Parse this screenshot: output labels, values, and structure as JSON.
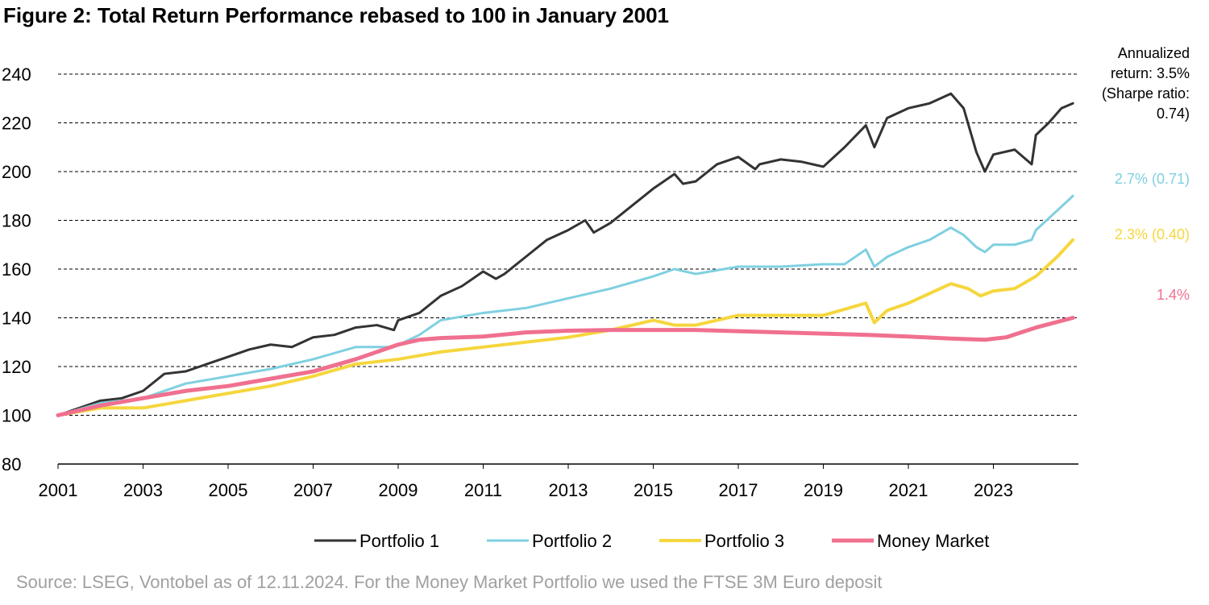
{
  "chart_data": {
    "type": "line",
    "title": "Figure 2: Total Return Performance rebased to 100 in January 2001",
    "source": "Source: LSEG, Vontobel as of 12.11.2024. For the Money Market Portfolio we used the FTSE 3M Euro deposit",
    "xlim": [
      2001,
      2025
    ],
    "xticks": [
      2001,
      2003,
      2005,
      2007,
      2009,
      2011,
      2013,
      2015,
      2017,
      2019,
      2021,
      2023
    ],
    "ylim": [
      80,
      240
    ],
    "yticks": [
      80,
      100,
      120,
      140,
      160,
      180,
      200,
      220,
      240
    ],
    "grid": true,
    "legend": "bottom",
    "series": [
      {
        "name": "Portfolio 1",
        "color": "#333333",
        "x": [
          2001,
          2001.5,
          2002,
          2002.5,
          2003,
          2003.5,
          2004,
          2004.5,
          2005,
          2005.5,
          2006,
          2006.5,
          2007,
          2007.5,
          2008,
          2008.5,
          2008.9,
          2009,
          2009.5,
          2010,
          2010.5,
          2011,
          2011.3,
          2011.5,
          2012,
          2012.5,
          2013,
          2013.4,
          2013.6,
          2014,
          2014.5,
          2015,
          2015.5,
          2015.7,
          2016,
          2016.5,
          2017,
          2017.4,
          2017.5,
          2018,
          2018.5,
          2019,
          2019.5,
          2020,
          2020.2,
          2020.5,
          2021,
          2021.5,
          2022,
          2022.3,
          2022.6,
          2022.8,
          2023,
          2023.5,
          2023.9,
          2024,
          2024.3,
          2024.6,
          2024.87
        ],
        "values": [
          100,
          103,
          106,
          107,
          110,
          117,
          118,
          121,
          124,
          127,
          129,
          128,
          132,
          133,
          136,
          137,
          135,
          139,
          142,
          149,
          153,
          159,
          156,
          158,
          165,
          172,
          176,
          180,
          175,
          179,
          186,
          193,
          199,
          195,
          196,
          203,
          206,
          201,
          203,
          205,
          204,
          202,
          210,
          219,
          210,
          222,
          226,
          228,
          232,
          226,
          208,
          200,
          207,
          209,
          203,
          215,
          220,
          226,
          228
        ]
      },
      {
        "name": "Portfolio 2",
        "color": "#7fd0e0",
        "x": [
          2001,
          2002,
          2003,
          2004,
          2005,
          2006,
          2007,
          2008,
          2008.9,
          2009.5,
          2010,
          2011,
          2012,
          2013,
          2014,
          2015,
          2015.5,
          2016,
          2017,
          2018,
          2019,
          2019.5,
          2020,
          2020.2,
          2020.5,
          2021,
          2021.5,
          2022,
          2022.3,
          2022.6,
          2022.8,
          2023,
          2023.5,
          2023.9,
          2024,
          2024.5,
          2024.87
        ],
        "values": [
          100,
          105,
          107,
          113,
          116,
          119,
          123,
          128,
          128,
          133,
          139,
          142,
          144,
          148,
          152,
          157,
          160,
          158,
          161,
          161,
          162,
          162,
          168,
          161,
          165,
          169,
          172,
          177,
          174,
          169,
          167,
          170,
          170,
          172,
          176,
          184,
          190
        ]
      },
      {
        "name": "Portfolio 3",
        "color": "#f5d63d",
        "x": [
          2001,
          2002,
          2003,
          2004,
          2005,
          2006,
          2007,
          2008,
          2009,
          2010,
          2011,
          2012,
          2013,
          2014,
          2015,
          2015.5,
          2016,
          2017,
          2018,
          2019,
          2020,
          2020.2,
          2020.5,
          2021,
          2021.5,
          2022,
          2022.4,
          2022.7,
          2023,
          2023.5,
          2024,
          2024.5,
          2024.87
        ],
        "values": [
          100,
          103,
          103,
          106,
          109,
          112,
          116,
          121,
          123,
          126,
          128,
          130,
          132,
          135,
          139,
          137,
          137,
          141,
          141,
          141,
          146,
          138,
          143,
          146,
          150,
          154,
          152,
          149,
          151,
          152,
          157,
          165,
          172
        ]
      },
      {
        "name": "Money Market",
        "color": "#f0708f",
        "x": [
          2001,
          2002,
          2003,
          2004,
          2005,
          2006,
          2007,
          2008,
          2009,
          2009.5,
          2010,
          2011,
          2012,
          2013,
          2014,
          2015,
          2016,
          2017,
          2018,
          2019,
          2020,
          2021,
          2022,
          2022.8,
          2023.3,
          2024,
          2024.87
        ],
        "values": [
          100,
          104,
          107,
          110,
          112,
          115,
          118,
          123,
          129,
          131,
          131.7,
          132.3,
          134,
          134.7,
          135,
          135,
          135,
          134.5,
          134,
          133.5,
          133,
          132.3,
          131.5,
          131,
          132,
          136,
          140
        ]
      }
    ],
    "annotations": [
      {
        "text": "Annualized return: 3.5% (Sharpe ratio: 0.74)",
        "color": "#000000"
      },
      {
        "text": "2.7% (0.71)",
        "color": "#7fd0e0"
      },
      {
        "text": "2.3% (0.40)",
        "color": "#f5d63d"
      },
      {
        "text": "1.4%",
        "color": "#f0708f"
      }
    ]
  }
}
